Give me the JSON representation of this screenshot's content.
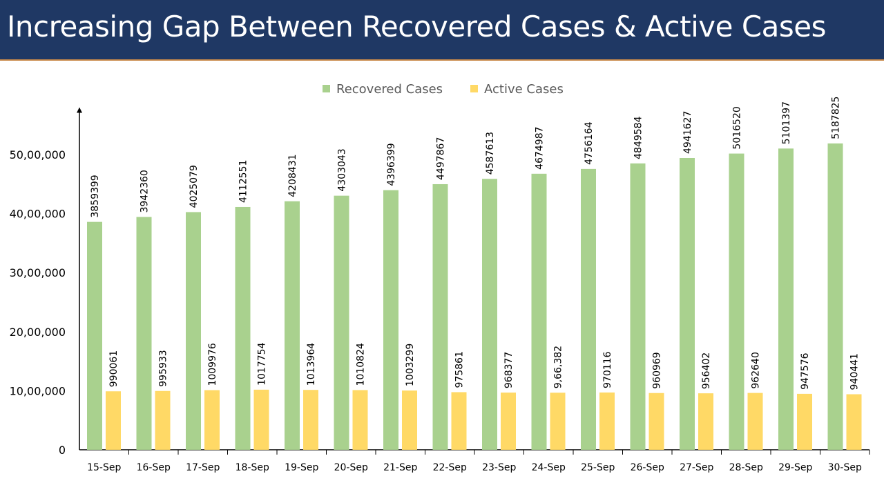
{
  "header": {
    "title": "Increasing Gap Between Recovered Cases & Active Cases"
  },
  "chart_data": {
    "type": "bar",
    "title": "Increasing Gap Between Recovered Cases & Active Cases",
    "xlabel": "",
    "ylabel": "",
    "ylim": [
      0,
      5800000
    ],
    "grid": false,
    "legend_position": "top",
    "yticks": [
      0,
      1000000,
      2000000,
      3000000,
      4000000,
      5000000
    ],
    "ytick_labels": [
      "0",
      "10,00,000",
      "20,00,000",
      "30,00,000",
      "40,00,000",
      "50,00,000"
    ],
    "categories": [
      "15-Sep",
      "16-Sep",
      "17-Sep",
      "18-Sep",
      "19-Sep",
      "20-Sep",
      "21-Sep",
      "22-Sep",
      "23-Sep",
      "24-Sep",
      "25-Sep",
      "26-Sep",
      "27-Sep",
      "28-Sep",
      "29-Sep",
      "30-Sep"
    ],
    "series": [
      {
        "name": "Recovered Cases",
        "color": "#a9d18e",
        "values": [
          3859399,
          3942360,
          4025079,
          4112551,
          4208431,
          4303043,
          4396399,
          4497867,
          4587613,
          4674987,
          4756164,
          4849584,
          4941627,
          5016520,
          5101397,
          5187825
        ],
        "labels": [
          "3859399",
          "3942360",
          "4025079",
          "4112551",
          "4208431",
          "4303043",
          "4396399",
          "4497867",
          "4587613",
          "4674987",
          "4756164",
          "4849584",
          "4941627",
          "5016520",
          "5101397",
          "5187825"
        ]
      },
      {
        "name": "Active Cases",
        "color": "#ffd966",
        "values": [
          990061,
          995933,
          1009976,
          1017754,
          1013964,
          1010824,
          1003299,
          975861,
          968377,
          966382,
          970116,
          960969,
          956402,
          962640,
          947576,
          940441
        ],
        "labels": [
          "990061",
          "995933",
          "1009976",
          "1017754",
          "1013964",
          "1010824",
          "1003299",
          "975861",
          "968377",
          "9,66,382",
          "970116",
          "960969",
          "956402",
          "962640",
          "947576",
          "940441"
        ]
      }
    ]
  }
}
